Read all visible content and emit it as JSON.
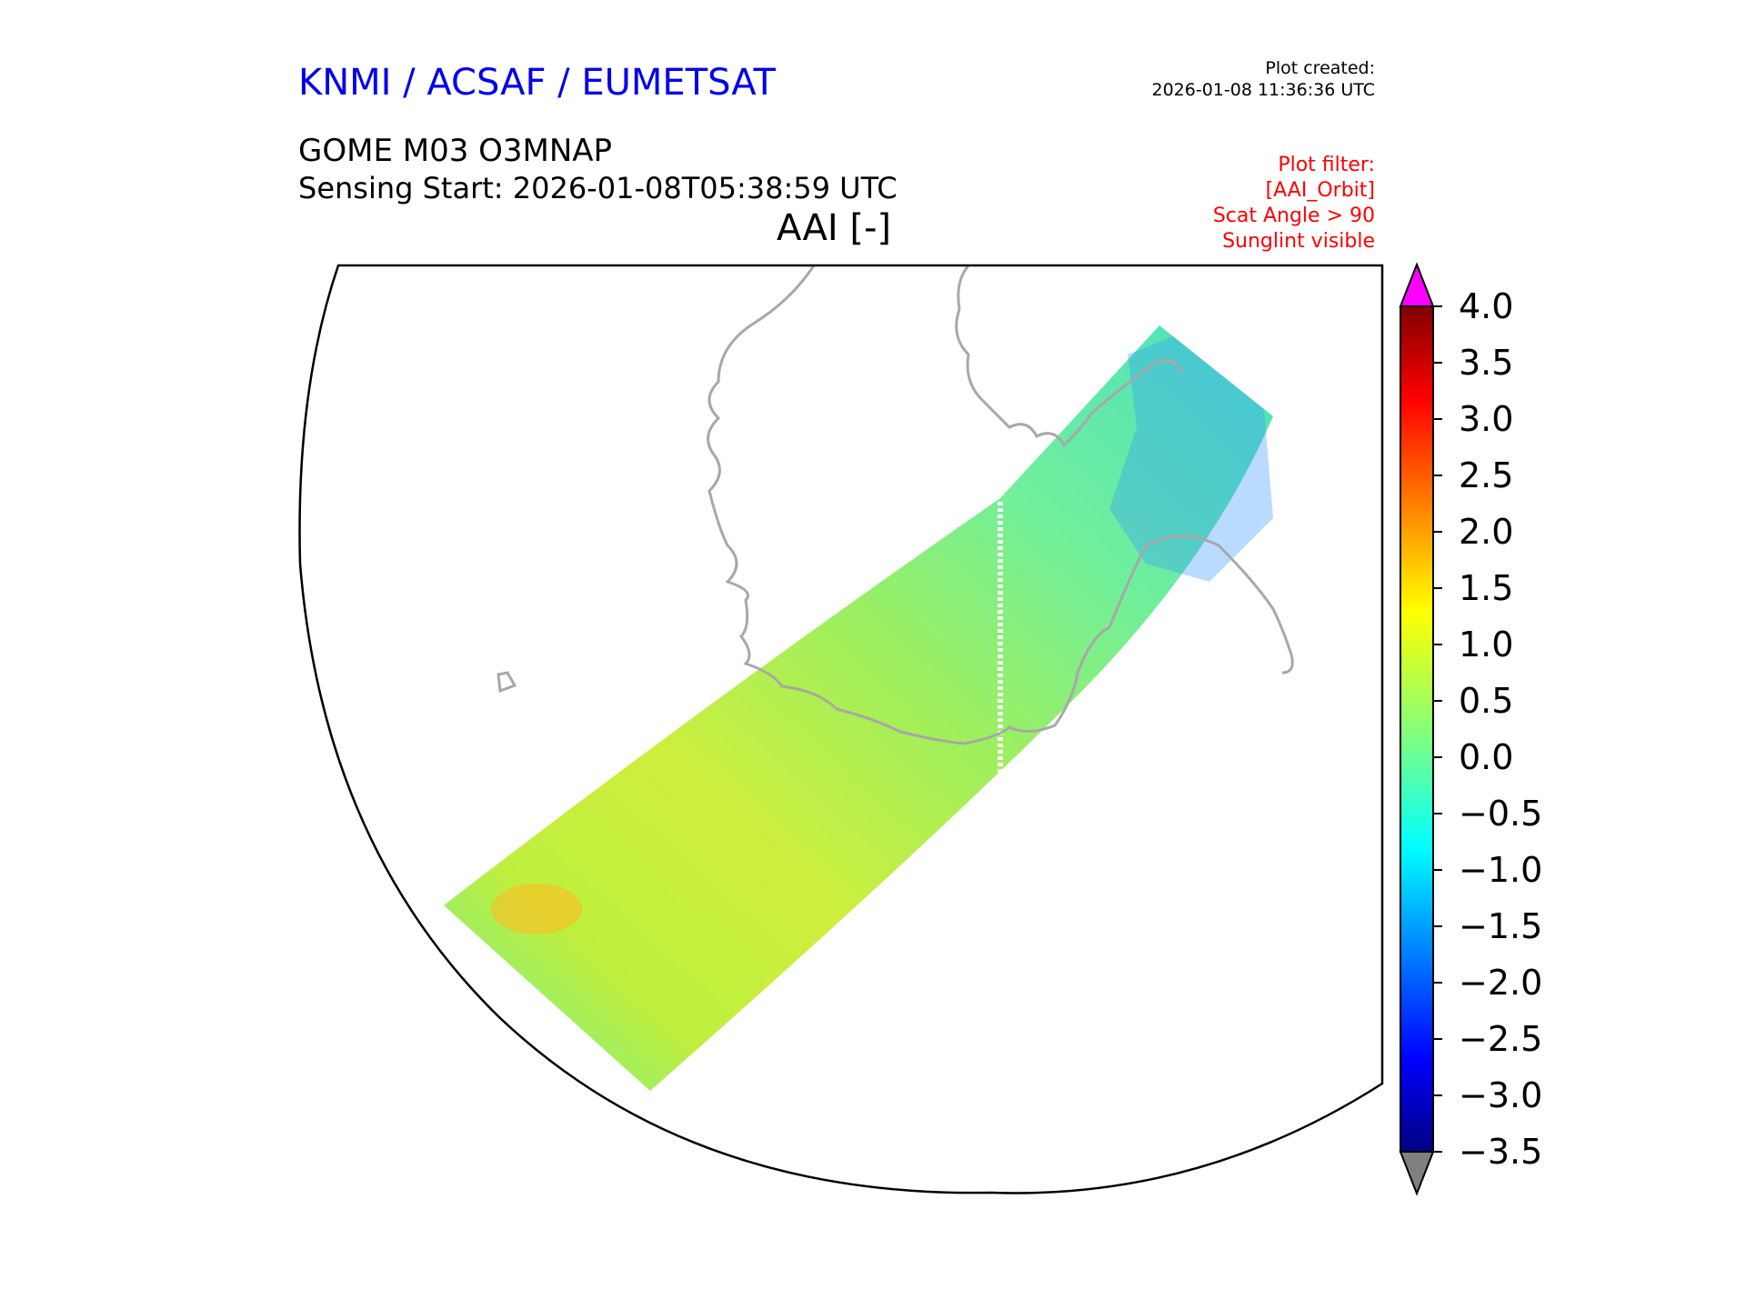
{
  "header": {
    "organization": "KNMI / ACSAF / EUMETSAT",
    "plot_created_label": "Plot created:",
    "plot_created_value": "2026-01-08 11:36:36 UTC",
    "product": "GOME M03 O3MNAP",
    "sensing_start": "Sensing Start: 2026-01-08T05:38:59 UTC",
    "plot_title": "AAI [-]",
    "plot_filter": [
      "Plot filter:",
      "[AAI_Orbit]",
      "Scat Angle > 90",
      "Sunglint visible"
    ]
  },
  "colors": {
    "title_blue": "#0000ee",
    "filter_red": "#ff0000",
    "coastline": "#a8a8a8",
    "over_max": "#ff00ff",
    "under_min": "#808080"
  },
  "colorbar": {
    "ticks": [
      "4.0",
      "3.5",
      "3.0",
      "2.5",
      "2.0",
      "1.5",
      "1.0",
      "0.5",
      "0.0",
      "−0.5",
      "−1.0",
      "−1.5",
      "−2.0",
      "−2.5",
      "−3.0",
      "−3.5"
    ],
    "min": -3.5,
    "max": 4.0,
    "extend": "both"
  },
  "map": {
    "quantity": "AAI",
    "swath_typical_value": 0.5
  }
}
